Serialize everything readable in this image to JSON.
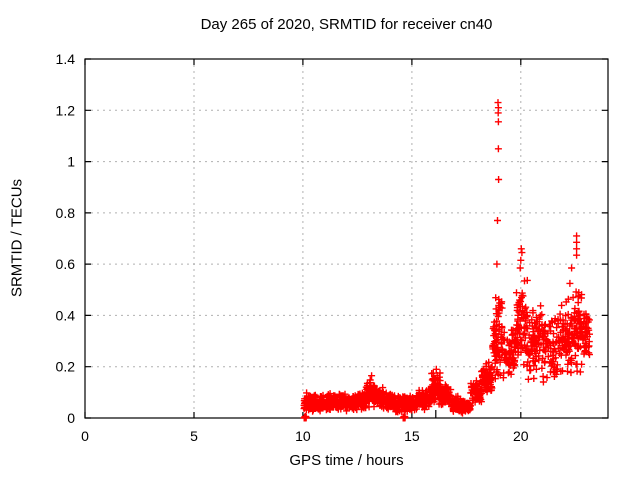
{
  "chart_data": {
    "type": "scatter",
    "title": "Day 265 of 2020, SRMTID for receiver cn40",
    "xlabel": "GPS time / hours",
    "ylabel": "SRMTID / TECUs",
    "xlim": [
      0,
      24
    ],
    "ylim": [
      0,
      1.4
    ],
    "xticks": [
      0,
      5,
      10,
      15,
      20
    ],
    "xtick_labels": [
      "0",
      "5",
      "10",
      "15",
      "20"
    ],
    "yticks": [
      0,
      0.2,
      0.4,
      0.6,
      0.8,
      1.0,
      1.2,
      1.4
    ],
    "ytick_labels": [
      "0",
      "0.2",
      "0.4",
      "0.6",
      "0.8",
      "1",
      "1.2",
      "1.4"
    ],
    "grid": true,
    "legend": "none",
    "marker": "plus",
    "marker_color": "#ff0000",
    "axis_color": "#000000",
    "grid_color": "#b0b0b0",
    "background": "#ffffff",
    "extra_axis_tick_x": 16.1,
    "band_segments": [
      [
        10.05,
        10.5,
        60,
        0.02,
        0.1
      ],
      [
        10.5,
        11.0,
        70,
        0.025,
        0.095
      ],
      [
        11.0,
        11.5,
        70,
        0.02,
        0.1
      ],
      [
        11.5,
        12.0,
        70,
        0.03,
        0.1
      ],
      [
        12.0,
        12.5,
        70,
        0.025,
        0.09
      ],
      [
        12.5,
        12.9,
        55,
        0.03,
        0.1
      ],
      [
        12.9,
        13.3,
        60,
        0.04,
        0.155
      ],
      [
        13.3,
        13.7,
        55,
        0.035,
        0.13
      ],
      [
        13.7,
        14.2,
        65,
        0.03,
        0.1
      ],
      [
        14.2,
        14.7,
        60,
        0.02,
        0.09
      ],
      [
        14.7,
        15.3,
        75,
        0.02,
        0.095
      ],
      [
        15.3,
        15.9,
        75,
        0.03,
        0.12
      ],
      [
        15.9,
        16.3,
        60,
        0.05,
        0.185
      ],
      [
        16.3,
        16.8,
        65,
        0.04,
        0.13
      ],
      [
        16.8,
        17.3,
        65,
        0.02,
        0.09
      ],
      [
        17.3,
        17.7,
        55,
        0.015,
        0.07
      ],
      [
        17.7,
        18.2,
        65,
        0.05,
        0.15
      ],
      [
        18.2,
        18.7,
        65,
        0.09,
        0.22
      ],
      [
        18.7,
        19.2,
        75,
        0.14,
        0.5
      ],
      [
        19.2,
        19.8,
        65,
        0.14,
        0.38
      ],
      [
        19.8,
        20.3,
        70,
        0.17,
        0.58
      ],
      [
        20.3,
        21.0,
        75,
        0.14,
        0.44
      ],
      [
        21.0,
        21.8,
        80,
        0.12,
        0.42
      ],
      [
        21.8,
        22.4,
        75,
        0.15,
        0.5
      ],
      [
        22.4,
        22.8,
        60,
        0.17,
        0.55
      ],
      [
        22.8,
        23.15,
        45,
        0.2,
        0.42
      ]
    ],
    "zero_points": [
      [
        10.06,
        0
      ],
      [
        10.08,
        0.004
      ],
      [
        10.1,
        0
      ],
      [
        10.12,
        0.006
      ],
      [
        10.14,
        0
      ],
      [
        10.15,
        0.003
      ],
      [
        14.6,
        0
      ],
      [
        14.62,
        0.004
      ],
      [
        14.64,
        0
      ],
      [
        14.66,
        0.006
      ],
      [
        14.68,
        0
      ],
      [
        14.69,
        0.003
      ]
    ],
    "outliers": [
      [
        18.95,
        1.23
      ],
      [
        18.97,
        1.21
      ],
      [
        18.96,
        1.19
      ],
      [
        18.97,
        1.155
      ],
      [
        18.97,
        1.05
      ],
      [
        18.98,
        0.93
      ],
      [
        18.93,
        0.77
      ],
      [
        18.9,
        0.6
      ],
      [
        20.02,
        0.66
      ],
      [
        20.05,
        0.645
      ],
      [
        20.0,
        0.615
      ],
      [
        19.97,
        0.585
      ],
      [
        22.56,
        0.71
      ],
      [
        22.56,
        0.685
      ],
      [
        22.56,
        0.66
      ],
      [
        22.56,
        0.635
      ],
      [
        22.33,
        0.585
      ],
      [
        22.25,
        0.525
      ],
      [
        16.12,
        0.19
      ],
      [
        13.15,
        0.165
      ]
    ]
  }
}
